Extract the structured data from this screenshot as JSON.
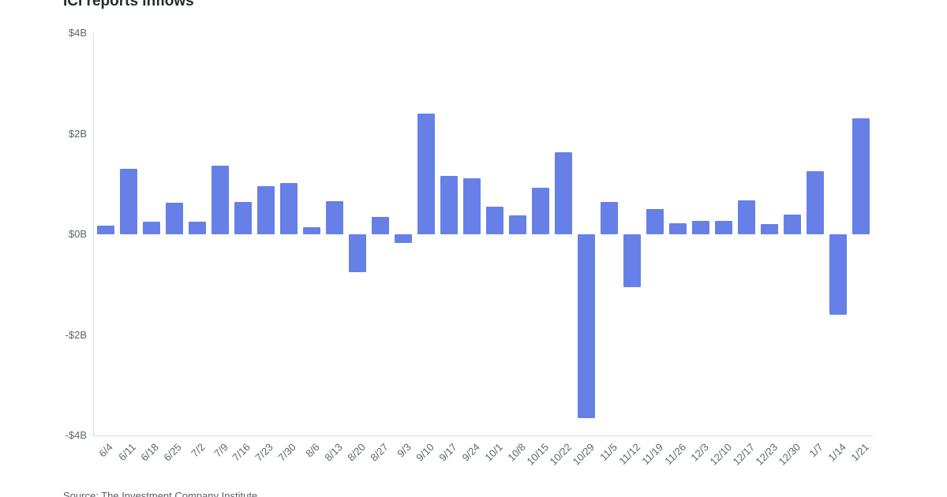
{
  "chart_data": {
    "type": "bar",
    "title": "ICI reports inflows",
    "source": "Source: The Investment Company Institute",
    "bar_color": "#6680e8",
    "axis_color": "#d9dde3",
    "label_color": "#5b6770",
    "ylim": [
      -4,
      4
    ],
    "grid": false,
    "legend": false,
    "yticks": [
      {
        "value": 4,
        "label": "$4B"
      },
      {
        "value": 2,
        "label": "$2B"
      },
      {
        "value": 0,
        "label": "$0B"
      },
      {
        "value": -2,
        "label": "-$2B"
      },
      {
        "value": -4,
        "label": "-$4B"
      }
    ],
    "categories": [
      "6/4",
      "6/11",
      "6/18",
      "6/25",
      "7/2",
      "7/9",
      "7/16",
      "7/23",
      "7/30",
      "8/6",
      "8/13",
      "8/20",
      "8/27",
      "9/3",
      "9/10",
      "9/17",
      "9/24",
      "10/1",
      "10/8",
      "10/15",
      "10/22",
      "10/29",
      "11/5",
      "11/12",
      "11/19",
      "11/26",
      "12/3",
      "12/10",
      "12/17",
      "12/23",
      "12/30",
      "1/7",
      "1/14",
      "1/21"
    ],
    "values": [
      0.18,
      1.3,
      0.25,
      0.62,
      0.25,
      1.37,
      0.65,
      0.95,
      1.02,
      0.14,
      0.66,
      -0.75,
      0.35,
      -0.18,
      2.4,
      1.16,
      1.12,
      0.55,
      0.37,
      0.92,
      1.63,
      -3.65,
      0.65,
      -1.05,
      0.5,
      0.22,
      0.26,
      0.27,
      0.67,
      0.2,
      0.4,
      1.26,
      -1.6,
      2.3
    ],
    "xlabel": "",
    "ylabel": ""
  }
}
